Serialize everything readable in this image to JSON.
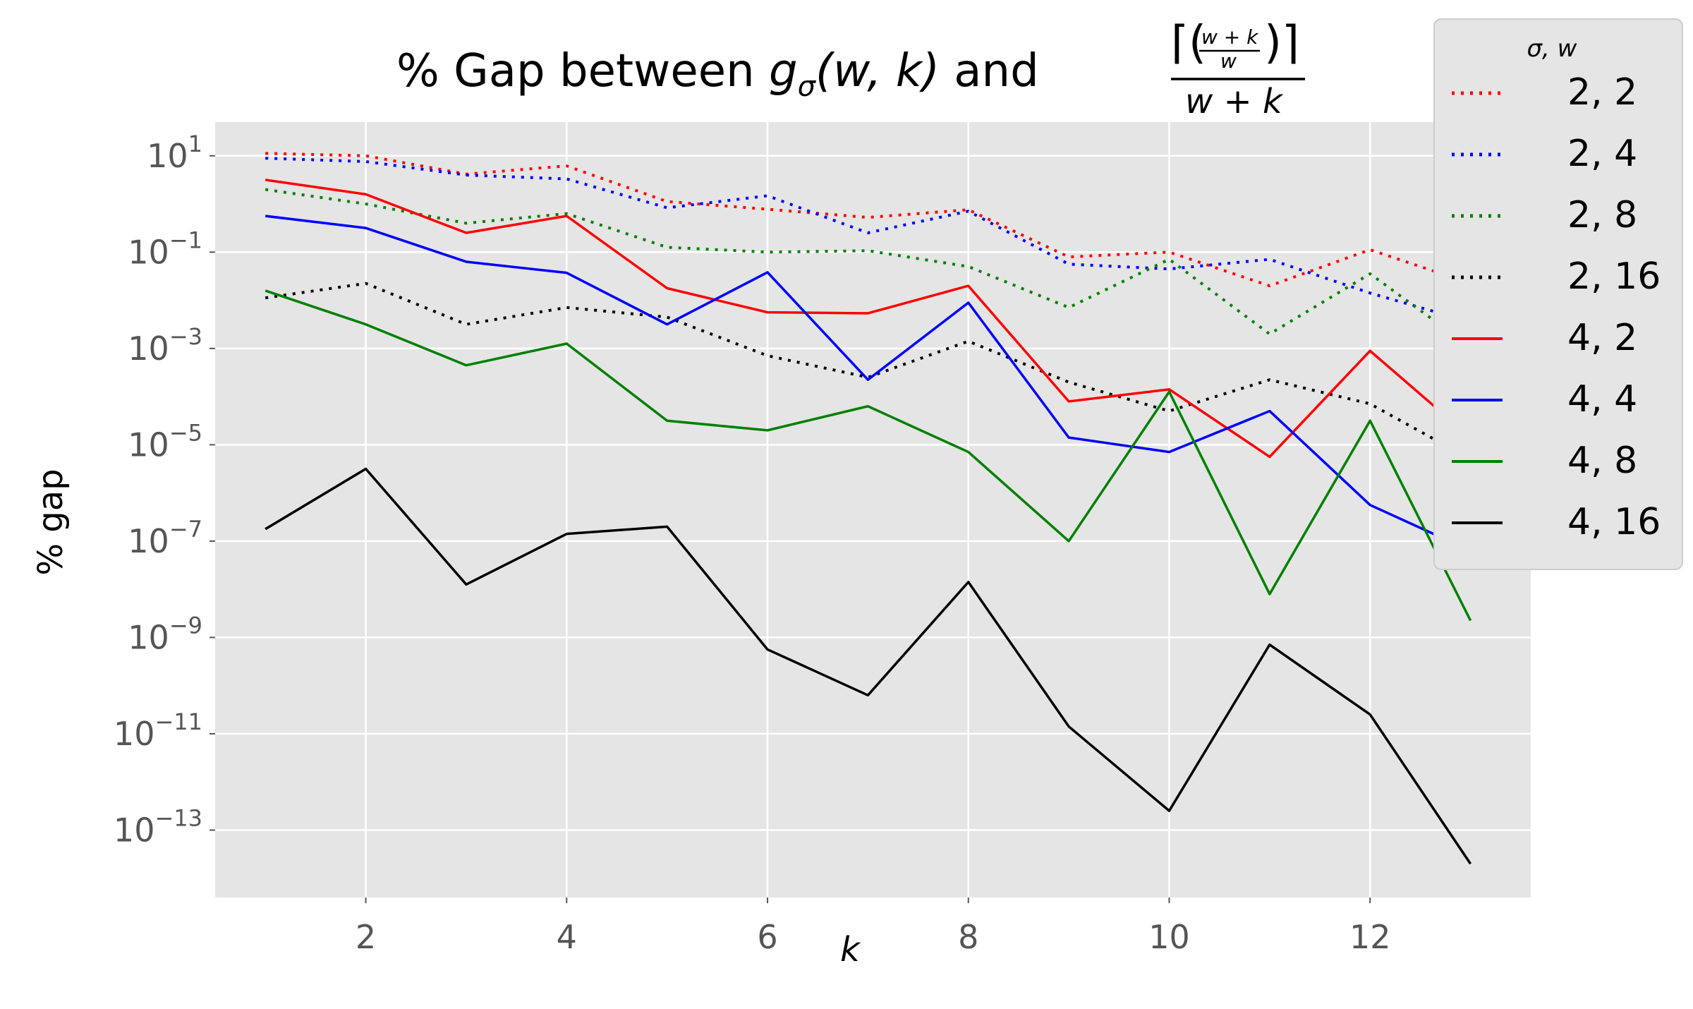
{
  "chart_data": {
    "type": "line",
    "title": {
      "prefix": "% Gap between ",
      "g": "g",
      "sigma": "σ",
      "args": "(w, k)",
      "and": " and ",
      "frac_num": "⌈(",
      "frac_inner_num": "w + k",
      "frac_inner_den": "w",
      "frac_num_end": ")⌉",
      "frac_den": "w + k"
    },
    "xlabel": "k",
    "ylabel": "% gap",
    "yscale": "log",
    "xlim": [
      0.5,
      13.6
    ],
    "ylim_log10": [
      -14.4,
      1.7
    ],
    "x_ticks": [
      2,
      4,
      6,
      8,
      10,
      12
    ],
    "y_ticks": [
      {
        "base": "10",
        "exp": "1",
        "value": 1
      },
      {
        "base": "10",
        "exp": "−1",
        "value": -1
      },
      {
        "base": "10",
        "exp": "−3",
        "value": -3
      },
      {
        "base": "10",
        "exp": "−5",
        "value": -5
      },
      {
        "base": "10",
        "exp": "−7",
        "value": -7
      },
      {
        "base": "10",
        "exp": "−9",
        "value": -9
      },
      {
        "base": "10",
        "exp": "−11",
        "value": -11
      },
      {
        "base": "10",
        "exp": "−13",
        "value": -13
      }
    ],
    "grid": true,
    "legend_title": "σ, w",
    "legend_position": "top-right",
    "x": [
      1,
      2,
      3,
      4,
      5,
      6,
      7,
      8,
      9,
      10,
      11,
      12,
      13
    ],
    "series": [
      {
        "name": "2, 2",
        "color": "#ff0000",
        "dash": "dotted",
        "log10_values": [
          1.05,
          1.0,
          0.62,
          0.79,
          0.05,
          -0.11,
          -0.28,
          -0.12,
          -1.1,
          -1.0,
          -1.7,
          -0.95,
          -1.65
        ]
      },
      {
        "name": "2, 4",
        "color": "#0000ff",
        "dash": "dotted",
        "log10_values": [
          0.95,
          0.88,
          0.6,
          0.52,
          -0.08,
          0.17,
          -0.6,
          -0.15,
          -1.25,
          -1.35,
          -1.15,
          -1.85,
          -2.45
        ]
      },
      {
        "name": "2, 8",
        "color": "#008000",
        "dash": "dotted",
        "log10_values": [
          0.3,
          0.0,
          -0.4,
          -0.2,
          -0.9,
          -1.0,
          -0.97,
          -1.3,
          -2.15,
          -1.15,
          -2.7,
          -1.45,
          -2.97
        ]
      },
      {
        "name": "2, 16",
        "color": "#000000",
        "dash": "dotted",
        "log10_values": [
          -1.95,
          -1.65,
          -2.5,
          -2.15,
          -2.35,
          -3.15,
          -3.6,
          -2.85,
          -3.7,
          -4.3,
          -3.65,
          -4.15,
          -5.3
        ]
      },
      {
        "name": "4, 2",
        "color": "#ff0000",
        "dash": "solid",
        "log10_values": [
          0.5,
          0.2,
          -0.6,
          -0.25,
          -1.75,
          -2.25,
          -2.27,
          -1.7,
          -4.1,
          -3.85,
          -5.25,
          -3.05,
          -4.85
        ]
      },
      {
        "name": "4, 4",
        "color": "#0000ff",
        "dash": "solid",
        "log10_values": [
          -0.25,
          -0.5,
          -1.2,
          -1.43,
          -2.5,
          -1.42,
          -3.65,
          -2.05,
          -4.85,
          -5.15,
          -4.3,
          -6.25,
          -7.2
        ]
      },
      {
        "name": "4, 8",
        "color": "#008000",
        "dash": "solid",
        "log10_values": [
          -1.8,
          -2.5,
          -3.35,
          -2.9,
          -4.5,
          -4.7,
          -4.2,
          -5.15,
          -7.0,
          -3.9,
          -8.1,
          -4.5,
          -8.65
        ]
      },
      {
        "name": "4, 16",
        "color": "#000000",
        "dash": "solid",
        "log10_values": [
          -6.75,
          -5.5,
          -7.9,
          -6.85,
          -6.7,
          -9.25,
          -10.2,
          -7.85,
          -10.85,
          -12.6,
          -9.15,
          -10.6,
          -13.7
        ]
      }
    ]
  }
}
